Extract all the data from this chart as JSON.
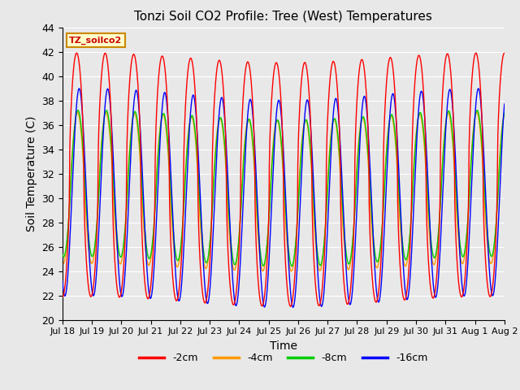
{
  "title": "Tonzi Soil CO2 Profile: Tree (West) Temperatures",
  "xlabel": "Time",
  "ylabel": "Soil Temperature (C)",
  "ylim": [
    20,
    44
  ],
  "yticks": [
    20,
    22,
    24,
    26,
    28,
    30,
    32,
    34,
    36,
    38,
    40,
    42,
    44
  ],
  "xtick_labels": [
    "Jul 18",
    "Jul 19",
    "Jul 20",
    "Jul 21",
    "Jul 22",
    "Jul 23",
    "Jul 24",
    "Jul 25",
    "Jul 26",
    "Jul 27",
    "Jul 28",
    "Jul 29",
    "Jul 30",
    "Jul 31",
    "Aug 1",
    "Aug 2"
  ],
  "legend_labels": [
    "-2cm",
    "-4cm",
    "-8cm",
    "-16cm"
  ],
  "line_colors": [
    "#ff0000",
    "#ff9900",
    "#00cc00",
    "#0000ff"
  ],
  "annotation_text": "TZ_soilco2",
  "annotation_bg": "#ffffcc",
  "annotation_border": "#cc8800",
  "bg_color": "#e8e8e8",
  "plot_bg": "#e8e8e8",
  "grid_color": "#ffffff",
  "n_days": 15.5,
  "samples_per_day": 96
}
